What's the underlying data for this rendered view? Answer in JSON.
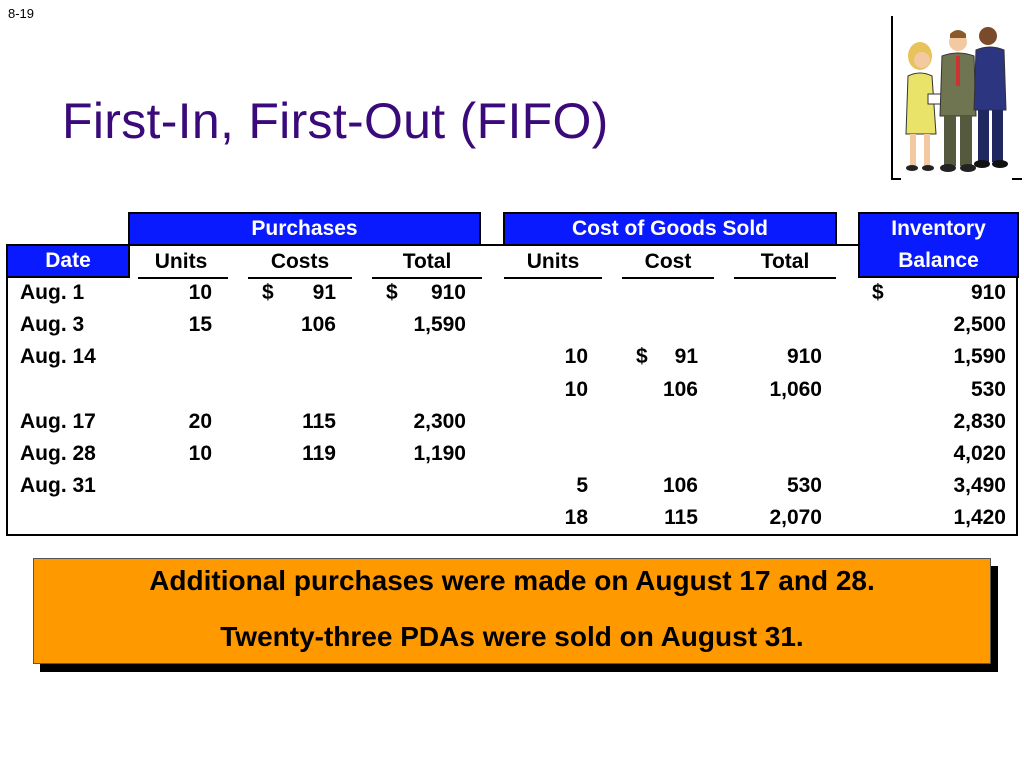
{
  "slide_number": "8-19",
  "title": "First-In, First-Out (FIFO)",
  "table": {
    "group_headers": {
      "purchases": "Purchases",
      "cogs": "Cost of Goods Sold",
      "inventory_line1": "Inventory",
      "inventory_line2": "Balance"
    },
    "date_header": "Date",
    "sub_headers": {
      "p_units": "Units",
      "p_costs": "Costs",
      "p_total": "Total",
      "c_units": "Units",
      "c_cost": "Cost",
      "c_total": "Total"
    },
    "rows": [
      {
        "date": "Aug. 1",
        "p_units": "10",
        "p_cost_sym": "$",
        "p_costs": "91",
        "p_total_sym": "$",
        "p_total": "910",
        "c_units": "",
        "c_cost_sym": "",
        "c_cost": "",
        "c_total": "",
        "inv_sym": "$",
        "inv": "910"
      },
      {
        "date": "Aug. 3",
        "p_units": "15",
        "p_cost_sym": "",
        "p_costs": "106",
        "p_total_sym": "",
        "p_total": "1,590",
        "c_units": "",
        "c_cost_sym": "",
        "c_cost": "",
        "c_total": "",
        "inv_sym": "",
        "inv": "2,500"
      },
      {
        "date": "Aug. 14",
        "p_units": "",
        "p_cost_sym": "",
        "p_costs": "",
        "p_total_sym": "",
        "p_total": "",
        "c_units": "10",
        "c_cost_sym": "$",
        "c_cost": "91",
        "c_total": "910",
        "inv_sym": "",
        "inv": "1,590"
      },
      {
        "date": "",
        "p_units": "",
        "p_cost_sym": "",
        "p_costs": "",
        "p_total_sym": "",
        "p_total": "",
        "c_units": "10",
        "c_cost_sym": "",
        "c_cost": "106",
        "c_total": "1,060",
        "inv_sym": "",
        "inv": "530"
      },
      {
        "date": "Aug. 17",
        "p_units": "20",
        "p_cost_sym": "",
        "p_costs": "115",
        "p_total_sym": "",
        "p_total": "2,300",
        "c_units": "",
        "c_cost_sym": "",
        "c_cost": "",
        "c_total": "",
        "inv_sym": "",
        "inv": "2,830"
      },
      {
        "date": "Aug. 28",
        "p_units": "10",
        "p_cost_sym": "",
        "p_costs": "119",
        "p_total_sym": "",
        "p_total": "1,190",
        "c_units": "",
        "c_cost_sym": "",
        "c_cost": "",
        "c_total": "",
        "inv_sym": "",
        "inv": "4,020"
      },
      {
        "date": "Aug. 31",
        "p_units": "",
        "p_cost_sym": "",
        "p_costs": "",
        "p_total_sym": "",
        "p_total": "",
        "c_units": "5",
        "c_cost_sym": "",
        "c_cost": "106",
        "c_total": "530",
        "inv_sym": "",
        "inv": "3,490"
      },
      {
        "date": "",
        "p_units": "",
        "p_cost_sym": "",
        "p_costs": "",
        "p_total_sym": "",
        "p_total": "",
        "c_units": "18",
        "c_cost_sym": "",
        "c_cost": "115",
        "c_total": "2,070",
        "inv_sym": "",
        "inv": "1,420"
      }
    ]
  },
  "note": {
    "line1": "Additional purchases were made on August 17 and 28.",
    "line2": "Twenty-three PDAs were sold on August 31."
  },
  "colors": {
    "title": "#3a0a7a",
    "header_bg": "#0a1aff",
    "note_bg": "#ff9900"
  },
  "clipart_icon": "business-people-clipart"
}
